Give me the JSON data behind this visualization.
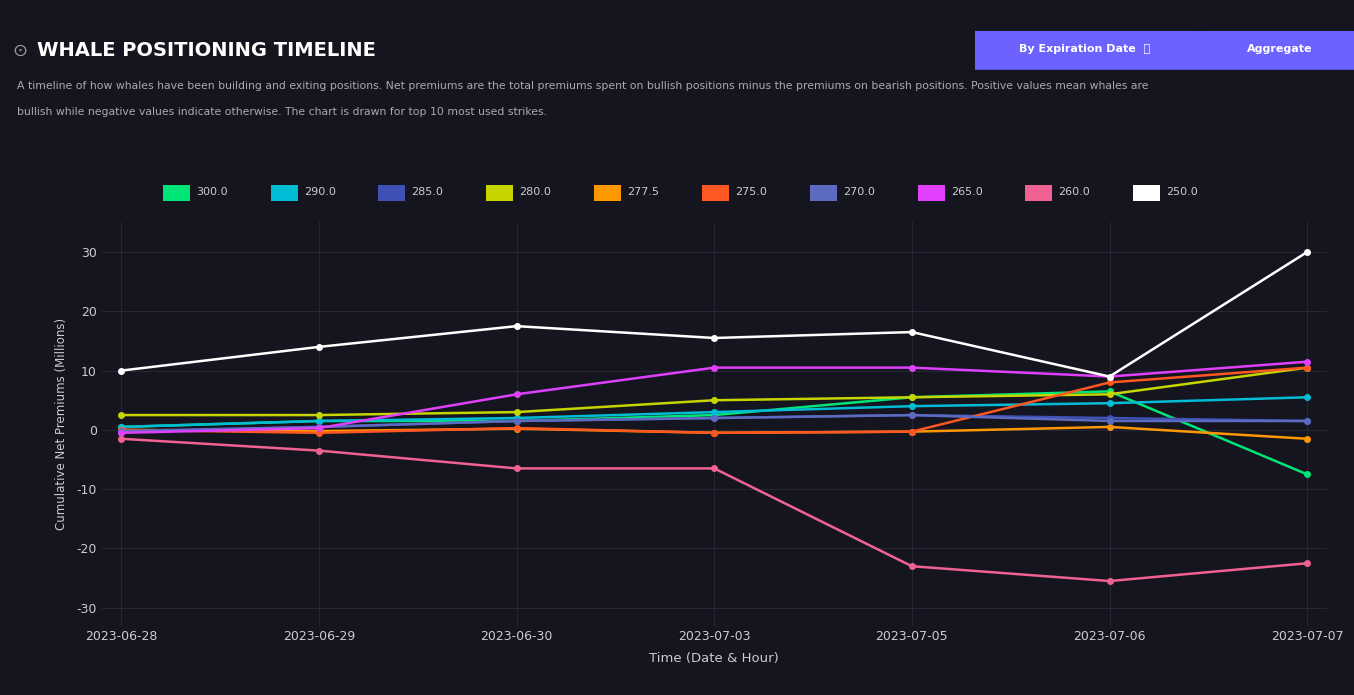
{
  "title": "WHALE POSITIONING TIMELINE",
  "subtitle_line1": "A timeline of how whales have been building and exiting positions. Net premiums are the total premiums spent on bullish positions minus the premiums on bearish positions. Positive values mean whales are",
  "subtitle_line2": "bullish while negative values indicate otherwise. The chart is drawn for top 10 most used strikes.",
  "xlabel": "Time (Date & Hour)",
  "ylabel": "Cumulative Net Premiums (Millions)",
  "bg_color": "#151520",
  "plot_bg_color": "#151520",
  "text_color": "#cccccc",
  "grid_color": "#2a2a3a",
  "x_labels": [
    "2023-06-28",
    "2023-06-29",
    "2023-06-30",
    "2023-07-03",
    "2023-07-05",
    "2023-07-06",
    "2023-07-07"
  ],
  "yticks": [
    -30,
    -20,
    -10,
    0,
    10,
    20,
    30
  ],
  "ylim": [
    -33,
    35
  ],
  "series": [
    {
      "label": "300.0",
      "color": "#00e676",
      "values": [
        0.5,
        1.5,
        1.5,
        2.5,
        5.5,
        6.5,
        -7.5
      ]
    },
    {
      "label": "290.0",
      "color": "#00bcd4",
      "values": [
        0.5,
        1.5,
        2.0,
        3.0,
        4.0,
        4.5,
        5.5
      ]
    },
    {
      "label": "285.0",
      "color": "#3f51b5",
      "values": [
        -0.3,
        0.5,
        1.5,
        2.0,
        2.5,
        2.0,
        1.5
      ]
    },
    {
      "label": "280.0",
      "color": "#c6d400",
      "values": [
        2.5,
        2.5,
        3.0,
        5.0,
        5.5,
        6.0,
        10.5
      ]
    },
    {
      "label": "277.5",
      "color": "#ff9800",
      "values": [
        0.0,
        -0.2,
        0.2,
        -0.5,
        -0.3,
        0.5,
        -1.5
      ]
    },
    {
      "label": "275.0",
      "color": "#ff5722",
      "values": [
        0.0,
        -0.5,
        0.3,
        -0.5,
        -0.3,
        8.0,
        10.5
      ]
    },
    {
      "label": "270.0",
      "color": "#5c6bc0",
      "values": [
        -0.2,
        0.5,
        1.5,
        2.0,
        2.5,
        1.5,
        1.5
      ]
    },
    {
      "label": "265.0",
      "color": "#e040fb",
      "values": [
        -0.5,
        0.3,
        6.0,
        10.5,
        10.5,
        9.0,
        11.5
      ]
    },
    {
      "label": "260.0",
      "color": "#f06292",
      "values": [
        -1.5,
        -3.5,
        -6.5,
        -6.5,
        -23.0,
        -25.5,
        -22.5
      ]
    },
    {
      "label": "250.0",
      "color": "#ffffff",
      "values": [
        10.0,
        14.0,
        17.5,
        15.5,
        16.5,
        9.0,
        30.0
      ]
    }
  ],
  "btn1_text": "By Expiration Date  ⤵",
  "btn2_text": "Aggregate",
  "btn_color": "#6c63ff"
}
